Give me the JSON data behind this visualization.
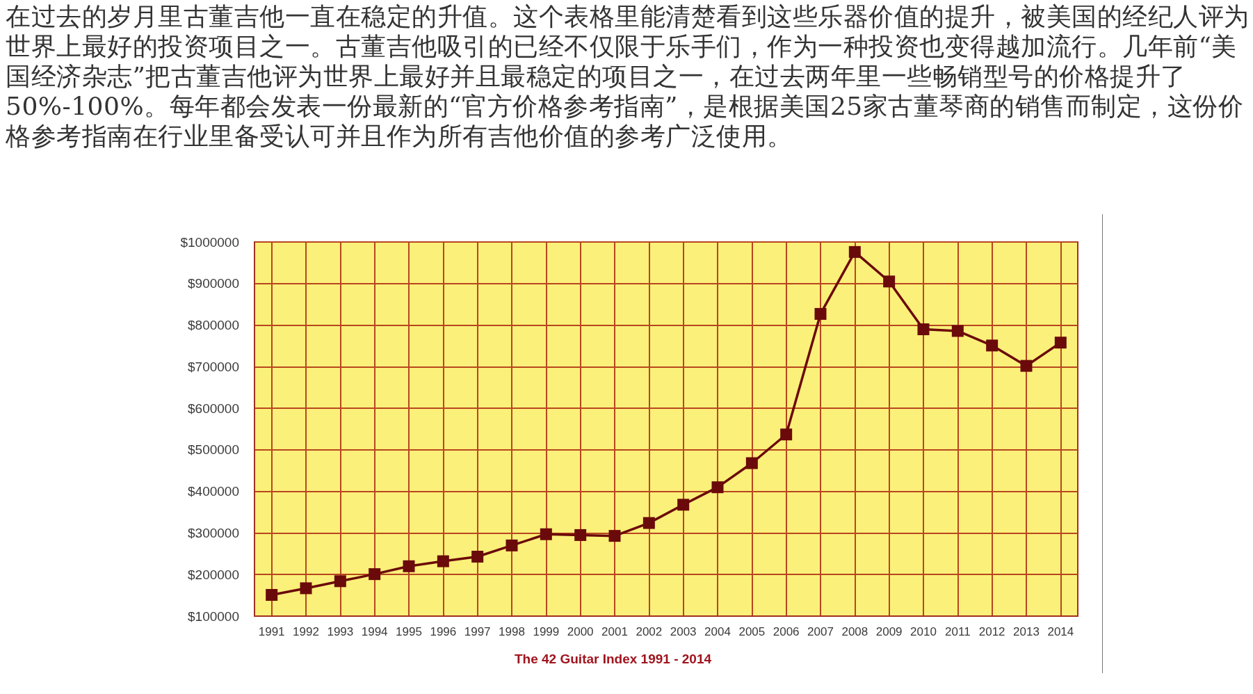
{
  "chart_data": {
    "type": "line",
    "title": "The 42 Guitar Index 1991 - 2014",
    "annotations": [
      "在过去的岁月里古董吉他一直在稳定的升值。这个表格里能清楚看到这些乐器价值的提升，被美国的经纪人评为世界上最好的投资项目之一。古董吉他吸引的已经不仅限于乐手们，作为一种投资也变得越加流行。几年前“美国经济杂志”把古董吉他评为世界上最好并且最稳定的项目之一，在过去两年里一些畅销型号的价格提升了50%-100%。每年都会发表一份最新的“官方价格参考指南”，是根据美国25家古董琴商的销售而制定，这份价格参考指南在行业里备受认可并且作为所有吉他价值的参考广泛使用。"
    ],
    "x": [
      1991,
      1992,
      1993,
      1994,
      1995,
      1996,
      1997,
      1998,
      1999,
      2000,
      2001,
      2002,
      2003,
      2004,
      2005,
      2006,
      2007,
      2008,
      2009,
      2010,
      2011,
      2012,
      2013,
      2014
    ],
    "series": [
      {
        "color": "#6b0a0a",
        "values": [
          151000,
          167000,
          184000,
          201000,
          220000,
          232000,
          243000,
          270000,
          297000,
          295000,
          293000,
          324000,
          368000,
          410000,
          468000,
          537000,
          827000,
          976000,
          905000,
          790000,
          786000,
          751000,
          702000,
          758000
        ]
      }
    ],
    "xlim": [
      1990.5,
      2014.5
    ],
    "xticks": [
      1991,
      1992,
      1993,
      1994,
      1995,
      1996,
      1997,
      1998,
      1999,
      2000,
      2001,
      2002,
      2003,
      2004,
      2005,
      2006,
      2007,
      2008,
      2009,
      2010,
      2011,
      2012,
      2013,
      2014
    ],
    "ylim": [
      100000,
      1000000
    ],
    "yticks": [
      {
        "value": 100000,
        "label": "$100000"
      },
      {
        "value": 200000,
        "label": "$200000"
      },
      {
        "value": 300000,
        "label": "$300000"
      },
      {
        "value": 400000,
        "label": "$400000"
      },
      {
        "value": 500000,
        "label": "$500000"
      },
      {
        "value": 600000,
        "label": "$600000"
      },
      {
        "value": 700000,
        "label": "$700000"
      },
      {
        "value": 800000,
        "label": "$800000"
      },
      {
        "value": 900000,
        "label": "$900000"
      },
      {
        "value": 1000000,
        "label": "$1000000"
      }
    ],
    "grid": true,
    "marker": "square",
    "line_style": "solid"
  }
}
